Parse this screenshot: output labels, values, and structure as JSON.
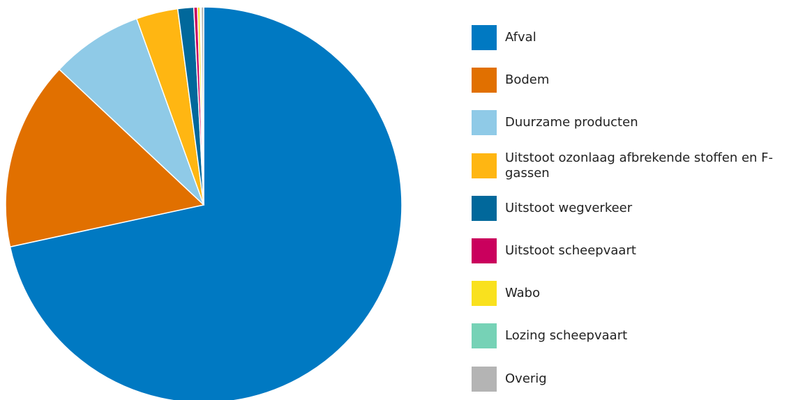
{
  "chart_data": {
    "type": "pie",
    "categories": [
      "Afval",
      "Bodem",
      "Duurzame producten",
      "Uitstoot ozonlaag afbrekende stoffen en F-gassen",
      "Uitstoot wegverkeer",
      "Uitstoot scheepvaart",
      "Wabo",
      "Lozing scheepvaart",
      "Overig"
    ],
    "values": [
      71.6,
      15.4,
      7.5,
      3.4,
      1.3,
      0.3,
      0.2,
      0.1,
      0.2
    ],
    "colors": [
      "#0079c2",
      "#e17000",
      "#8fcae7",
      "#ffb612",
      "#01689b",
      "#ca005d",
      "#f9e11e",
      "#76d2b6",
      "#b4b4b4"
    ]
  }
}
